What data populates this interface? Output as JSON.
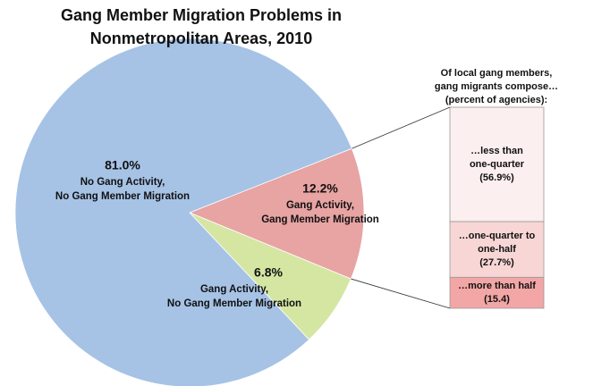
{
  "chart_data": {
    "type": "pie-of-bar",
    "title": "Gang Member Migration Problems in Nonmetropolitan Areas, 2010",
    "pie": {
      "values": [
        12.2,
        6.8,
        81.0
      ],
      "value_labels": [
        "12.2%",
        "6.8%",
        "81.0%"
      ],
      "labels": [
        [
          "Gang Activity,",
          "Gang Member Migration"
        ],
        [
          "Gang Activity,",
          "No Gang Member Migration"
        ],
        [
          "No Gang Activity,",
          "No Gang Member Migration"
        ]
      ],
      "colors": [
        "#e8a3a3",
        "#d5e6a3",
        "#a6c3e6"
      ]
    },
    "bar": {
      "header": [
        "Of local gang members,",
        "gang migrants compose…",
        "(percent of agencies):"
      ],
      "values": [
        56.9,
        27.7,
        15.4
      ],
      "labels": [
        [
          "…less than",
          "one-quarter"
        ],
        [
          "…one-quarter to",
          "one-half"
        ],
        [
          "…more than half"
        ]
      ],
      "value_labels": [
        "(56.9%)",
        "(27.7%)",
        "(15.4)"
      ],
      "colors": [
        "#fcefef",
        "#f8d6d6",
        "#f2a6a6"
      ]
    }
  }
}
